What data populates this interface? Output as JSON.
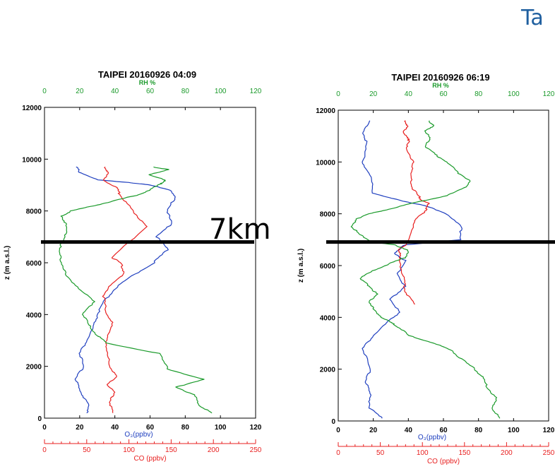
{
  "slide": {
    "title": "Ta",
    "annotation": "7km"
  },
  "colors": {
    "o3": "#1f3fbf",
    "co": "#e82020",
    "rh": "#1a9a2a",
    "axis": "#000000",
    "reference_line": "#000000"
  },
  "chart_data": [
    {
      "type": "line",
      "title": "TAIPEI 20160926 04:09",
      "ylabel": "z (m a.s.l.)",
      "ylim": [
        0,
        12000
      ],
      "yticks": [
        "0",
        "2000",
        "4000",
        "6000",
        "8000",
        "10000",
        "12000"
      ],
      "axes": {
        "rh": {
          "label": "RH %",
          "range": [
            0,
            120
          ],
          "ticks": [
            "0",
            "20",
            "40",
            "60",
            "80",
            "100",
            "120"
          ]
        },
        "o3": {
          "label": "O₃(ppbv)",
          "range": [
            0,
            120
          ],
          "ticks": [
            "0",
            "20",
            "40",
            "60",
            "80",
            "100",
            "120"
          ]
        },
        "co": {
          "label": "CO (ppbv)",
          "range": [
            0,
            250
          ],
          "ticks": [
            "0",
            "50",
            "100",
            "150",
            "200",
            "250"
          ]
        }
      },
      "reference_z": 6800,
      "series": [
        {
          "key": "o3",
          "axis": "o3",
          "x": [
            24,
            25,
            20,
            18,
            22,
            20,
            24,
            28,
            30,
            34,
            40,
            50,
            62,
            70,
            64,
            72,
            70,
            74,
            72,
            60,
            48,
            30,
            20,
            18
          ],
          "z": [
            200,
            600,
            1000,
            1500,
            2000,
            2500,
            3000,
            3500,
            4000,
            4500,
            5000,
            5500,
            6000,
            6500,
            7000,
            7500,
            8000,
            8500,
            8800,
            9000,
            9100,
            9200,
            9500,
            9700
          ]
        },
        {
          "key": "co",
          "axis": "co",
          "x": [
            80,
            78,
            82,
            75,
            85,
            78,
            72,
            76,
            80,
            72,
            70,
            80,
            95,
            90,
            80,
            120,
            110,
            100,
            90,
            85,
            70,
            75,
            72
          ],
          "z": [
            200,
            600,
            1000,
            1300,
            1600,
            2000,
            2700,
            3200,
            3700,
            4200,
            4700,
            5200,
            5600,
            6000,
            6200,
            7400,
            7800,
            8200,
            8600,
            8900,
            9200,
            9500,
            9700
          ]
        },
        {
          "key": "rh",
          "axis": "rh",
          "x": [
            95,
            88,
            85,
            75,
            90,
            70,
            65,
            35,
            30,
            25,
            22,
            28,
            20,
            12,
            10,
            8,
            12,
            12,
            10,
            15,
            28,
            40,
            52,
            60,
            64,
            68,
            68,
            60,
            70,
            62
          ],
          "z": [
            200,
            500,
            900,
            1200,
            1500,
            1900,
            2500,
            2900,
            3200,
            3600,
            4000,
            4500,
            5000,
            5500,
            6000,
            6500,
            7000,
            7500,
            7800,
            8000,
            8200,
            8400,
            8600,
            8800,
            9000,
            9100,
            9200,
            9400,
            9600,
            9700
          ]
        }
      ]
    },
    {
      "type": "line",
      "title": "TAIPEI 20160926 06:19",
      "ylabel": "z (m a.s.l.)",
      "ylim": [
        0,
        12000
      ],
      "yticks": [
        "0",
        "2000",
        "4000",
        "6000",
        "8000",
        "10000",
        "12000"
      ],
      "axes": {
        "rh": {
          "label": "RH %",
          "range": [
            0,
            120
          ],
          "ticks": [
            "0",
            "20",
            "40",
            "60",
            "80",
            "100",
            "120"
          ]
        },
        "o3": {
          "label": "O₃(ppbv)",
          "range": [
            0,
            120
          ],
          "ticks": [
            "0",
            "20",
            "40",
            "60",
            "80",
            "100",
            "120"
          ]
        },
        "co": {
          "label": "CO (ppbv)",
          "range": [
            0,
            250
          ],
          "ticks": [
            "0",
            "50",
            "100",
            "150",
            "200",
            "250"
          ]
        }
      },
      "reference_z": 6800,
      "series": [
        {
          "key": "o3",
          "axis": "o3",
          "x": [
            25,
            18,
            18,
            16,
            18,
            14,
            20,
            28,
            35,
            30,
            38,
            34,
            38,
            32,
            36,
            38,
            70,
            70,
            62,
            50,
            40,
            30,
            20,
            18,
            14,
            16,
            14,
            18
          ],
          "z": [
            100,
            500,
            1000,
            1500,
            2000,
            2800,
            3300,
            3800,
            4200,
            4700,
            5200,
            5700,
            6200,
            6500,
            6700,
            6800,
            7000,
            7500,
            8000,
            8300,
            8450,
            8600,
            8800,
            9500,
            10000,
            10800,
            11200,
            11600
          ]
        },
        {
          "key": "co",
          "axis": "co",
          "x": [
            90,
            80,
            78,
            76,
            72,
            75,
            70,
            82,
            90,
            100,
            105,
            108,
            100,
            95,
            88,
            85,
            90,
            80,
            85,
            80,
            78,
            82,
            80
          ],
          "z": [
            4500,
            5000,
            5400,
            5800,
            6200,
            6400,
            6600,
            6800,
            7700,
            8000,
            8200,
            8400,
            8500,
            8700,
            9000,
            9500,
            10000,
            10500,
            10800,
            11000,
            11200,
            11400,
            11600
          ]
        },
        {
          "key": "rh",
          "axis": "rh",
          "x": [
            92,
            88,
            90,
            85,
            82,
            78,
            70,
            65,
            55,
            40,
            35,
            30,
            25,
            20,
            18,
            22,
            18,
            12,
            20,
            30,
            38,
            40,
            32,
            20,
            12,
            8,
            10,
            18,
            30,
            45,
            62,
            72,
            75,
            68,
            62,
            55,
            50,
            52,
            50,
            54,
            52
          ],
          "z": [
            100,
            500,
            900,
            1300,
            1700,
            2000,
            2400,
            2700,
            3000,
            3300,
            3600,
            3800,
            4000,
            4300,
            4600,
            4900,
            5200,
            5500,
            5800,
            6100,
            6300,
            6600,
            6800,
            6900,
            7200,
            7500,
            7800,
            8000,
            8200,
            8450,
            8700,
            9000,
            9300,
            9600,
            10000,
            10300,
            10600,
            10900,
            11200,
            11400,
            11600
          ]
        }
      ]
    }
  ]
}
